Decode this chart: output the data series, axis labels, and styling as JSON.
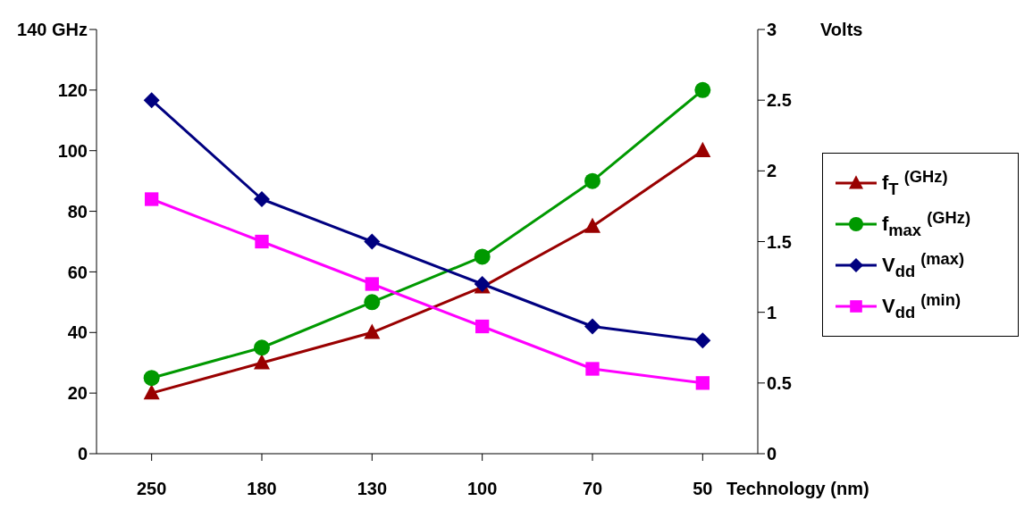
{
  "chart_data": {
    "type": "line",
    "xlabel": "Technology (nm)",
    "y2label": "Volts",
    "categories": [
      "250",
      "180",
      "130",
      "100",
      "70",
      "50"
    ],
    "ylim": [
      0,
      140
    ],
    "yticks": [
      0,
      20,
      40,
      60,
      80,
      100,
      120,
      {
        "value": 140,
        "label": "140 GHz"
      }
    ],
    "y2lim": [
      0,
      3
    ],
    "y2ticks": [
      0,
      0.5,
      1,
      1.5,
      2,
      2.5,
      3
    ],
    "grid": false,
    "legend": "right",
    "line_style": "solid",
    "series": [
      {
        "name": "f$_{T}$  $^{(GHz)}$",
        "color": "#990000",
        "marker": "triangle",
        "values": [
          20,
          30,
          40,
          55,
          75,
          100
        ]
      },
      {
        "name": "f$_{max}$  $^{(GHz)}$",
        "color": "#009900",
        "marker": "circle",
        "values": [
          25,
          35,
          50,
          65,
          90,
          120
        ]
      },
      {
        "name": "V$_{dd}$  $^{(max)}$",
        "color": "#000080",
        "marker": "diamond",
        "axis": "y2",
        "values": [
          2.5,
          1.8,
          1.5,
          1.2,
          0.9,
          0.8
        ]
      },
      {
        "name": "V$_{dd}$  $^{(min)}$",
        "color": "#ff00ff",
        "marker": "square",
        "axis": "y2",
        "values": [
          1.8,
          1.5,
          1.2,
          0.9,
          0.6,
          0.5
        ]
      }
    ]
  }
}
